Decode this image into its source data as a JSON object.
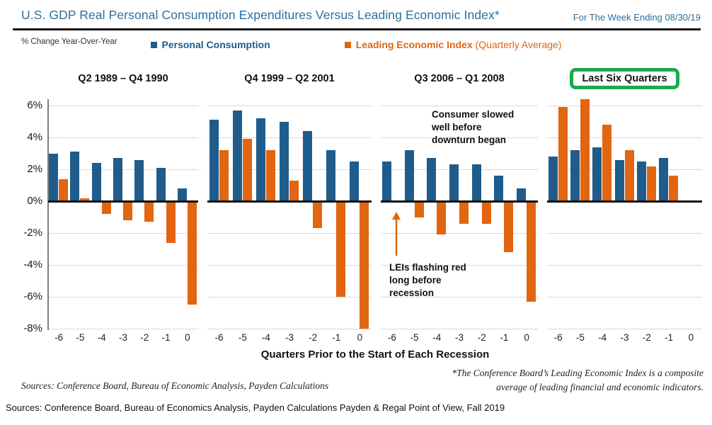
{
  "header": {
    "title": "U.S. GDP Real Personal Consumption Expenditures Versus Leading Economic Index*",
    "date_note": "For The Week Ending 08/30/19"
  },
  "yoy_note": "% Change Year-Over-Year",
  "legend": [
    {
      "label": "Personal Consumption",
      "suffix": "",
      "color": "#1f5c8c"
    },
    {
      "label": "Leading Economic Index",
      "suffix": " (Quarterly Average)",
      "color": "#e2650f"
    }
  ],
  "colors": {
    "blue": "#1f5c8c",
    "orange": "#e2650f",
    "green_box": "#1ca94e",
    "title_blue": "#2e6f9e"
  },
  "chart_data": {
    "type": "bar",
    "x": [
      "-6",
      "-5",
      "-4",
      "-3",
      "-2",
      "-1",
      "0"
    ],
    "ylim": [
      -8,
      6
    ],
    "ytick_labels": [
      "6%",
      "4%",
      "2%",
      "0%",
      "-2%",
      "-4%",
      "-6%",
      "-8%"
    ],
    "grid": true,
    "xlabel": "Quarters Prior to the Start of Each Recession",
    "ylabel": "% Change Year-Over-Year",
    "panels": [
      {
        "title": "Q2 1989 – Q4 1990",
        "highlighted": false,
        "series": [
          {
            "name": "Personal Consumption",
            "values": [
              3.0,
              3.1,
              2.4,
              2.7,
              2.6,
              2.1,
              0.8
            ]
          },
          {
            "name": "Leading Economic Index",
            "values": [
              1.4,
              0.2,
              -0.8,
              -1.2,
              -1.3,
              -2.6,
              -6.5
            ]
          }
        ]
      },
      {
        "title": "Q4 1999 – Q2 2001",
        "highlighted": false,
        "series": [
          {
            "name": "Personal Consumption",
            "values": [
              5.1,
              5.7,
              5.2,
              5.0,
              4.4,
              3.2,
              2.5
            ]
          },
          {
            "name": "Leading Economic Index",
            "values": [
              3.2,
              3.9,
              3.2,
              1.3,
              -1.7,
              -6.0,
              -8.0
            ]
          }
        ]
      },
      {
        "title": "Q3 2006 – Q1 2008",
        "highlighted": false,
        "series": [
          {
            "name": "Personal Consumption",
            "values": [
              2.5,
              3.2,
              2.7,
              2.3,
              2.3,
              1.6,
              0.8
            ]
          },
          {
            "name": "Leading Economic Index",
            "values": [
              -0.1,
              -1.0,
              -2.1,
              -1.4,
              -1.4,
              -3.2,
              -6.3
            ]
          }
        ]
      },
      {
        "title": "Last Six Quarters",
        "highlighted": true,
        "series": [
          {
            "name": "Personal Consumption",
            "values": [
              2.8,
              3.2,
              3.4,
              2.6,
              2.5,
              2.7,
              null
            ]
          },
          {
            "name": "Leading Economic Index",
            "values": [
              5.9,
              6.4,
              4.8,
              3.2,
              2.2,
              1.6,
              null
            ]
          }
        ]
      }
    ]
  },
  "annotations": {
    "consumer": "Consumer slowed\nwell before\ndownturn began",
    "leis": "LEIs flashing red\nlong before\nrecession"
  },
  "footnote": "*The Conference Board’s Leading Economic Index is a composite\naverage of leading financial and economic indicators.",
  "source_italic": "Sources: Conference Board, Bureau of Economic Analysis, Payden Calculations",
  "bottom_source": "Sources: Conference Board, Bureau of Economics Analysis, Payden Calculations   Payden & Regal Point of View, Fall 2019"
}
